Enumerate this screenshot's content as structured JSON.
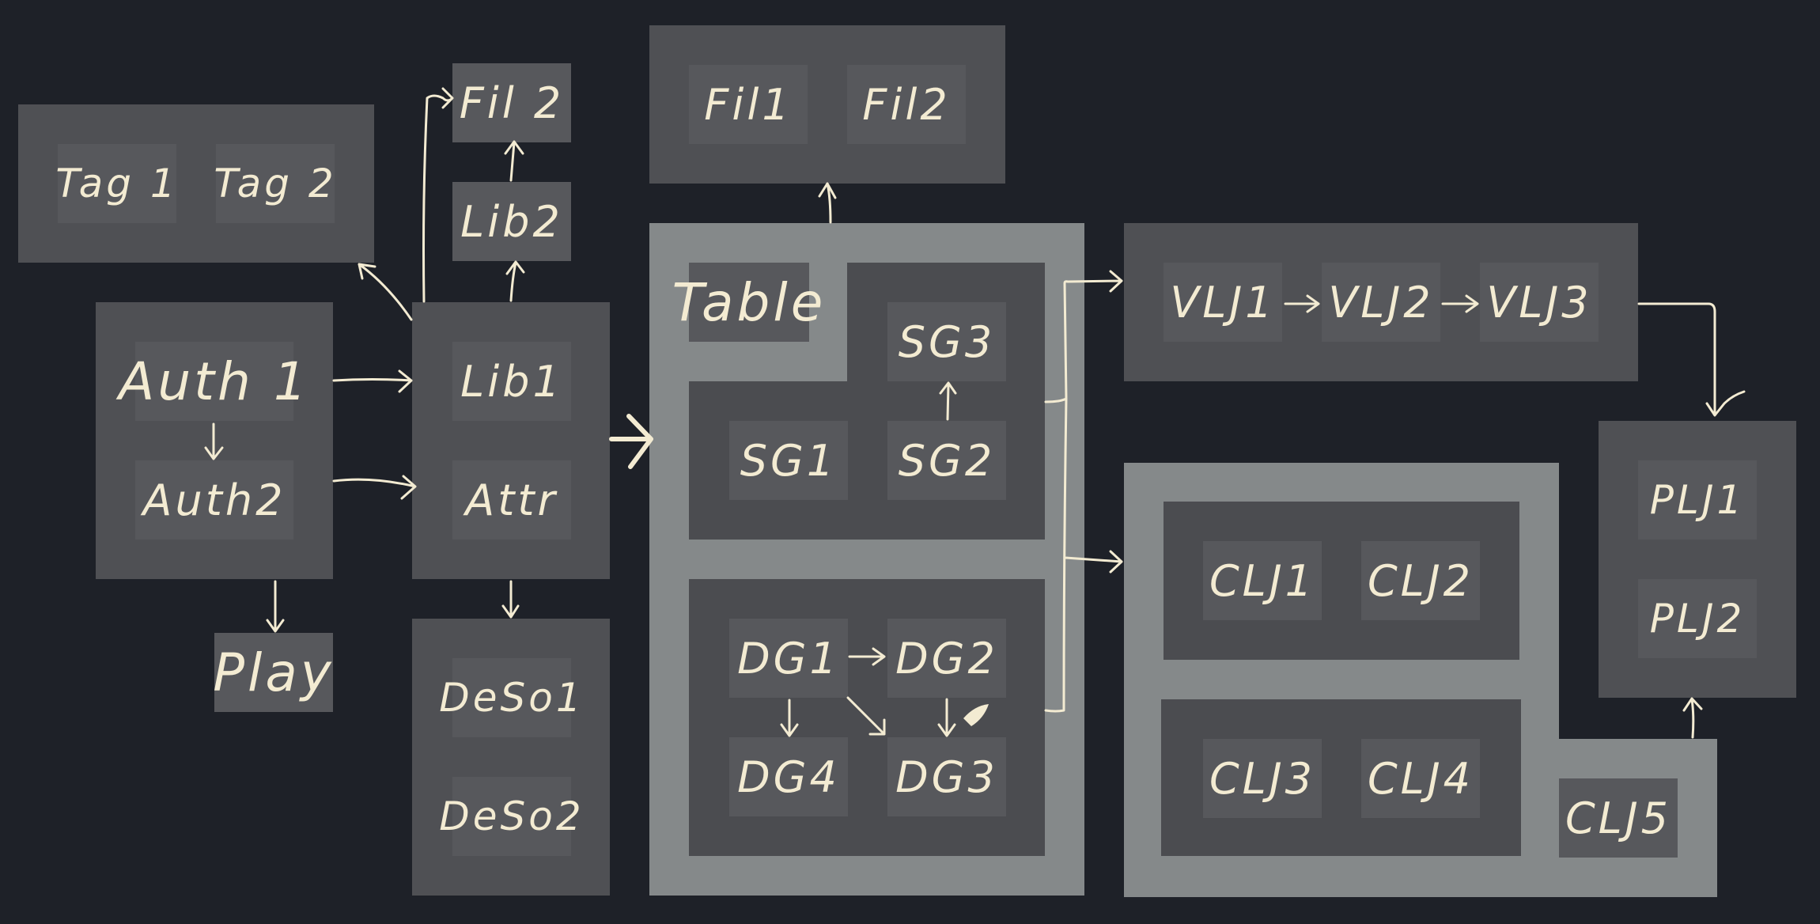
{
  "nodes": {
    "tag1": "Tag 1",
    "tag2": "Tag 2",
    "auth1": "Auth 1",
    "auth2": "Auth2",
    "play": "Play",
    "lib1": "Lib1",
    "attr": "Attr",
    "lib2": "Lib2",
    "fil2_left": "Fil 2",
    "deso1": "DeSo1",
    "deso2": "DeSo2",
    "fil1": "Fil1",
    "fil2_right": "Fil2",
    "table": "Table",
    "sg1": "SG1",
    "sg2": "SG2",
    "sg3": "SG3",
    "dg1": "DG1",
    "dg2": "DG2",
    "dg3": "DG3",
    "dg4": "DG4",
    "vlj1": "VLJ1",
    "vlj2": "VLJ2",
    "vlj3": "VLJ3",
    "clj1": "CLJ1",
    "clj2": "CLJ2",
    "clj3": "CLJ3",
    "clj4": "CLJ4",
    "clj5": "CLJ5",
    "plj1": "PLJ1",
    "plj2": "PLJ2"
  },
  "colors": {
    "background": "#1e2128",
    "group": "#4f5054",
    "group_light": "#85898a",
    "node": "#57585c",
    "ink": "#f3ebd2"
  }
}
